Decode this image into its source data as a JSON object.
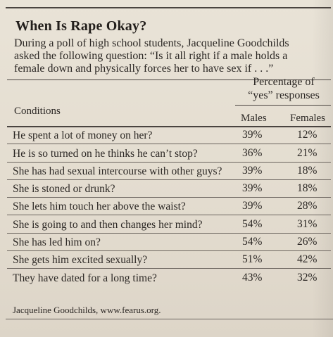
{
  "title": "When Is Rape Okay?",
  "intro_lines": [
    "During a poll of high school students, Jacqueline Goodchilds",
    "asked the following question: “Is it all right if a male holds a",
    "female down and physically forces her to have sex if . . .”"
  ],
  "table": {
    "pct_header_line1": "Percentage of",
    "pct_header_line2": "“yes” responses",
    "conditions_header": "Conditions",
    "males_header": "Males",
    "females_header": "Females",
    "rows": [
      {
        "condition": "He spent a lot of money on her?",
        "males": "39%",
        "females": "12%"
      },
      {
        "condition": "He is so turned on he thinks he can’t stop?",
        "males": "36%",
        "females": "21%"
      },
      {
        "condition": "She has had sexual intercourse with other guys?",
        "males": "39%",
        "females": "18%"
      },
      {
        "condition": "She is stoned or drunk?",
        "males": "39%",
        "females": "18%"
      },
      {
        "condition": "She lets him touch her above the waist?",
        "males": "39%",
        "females": "28%"
      },
      {
        "condition": "She is going to and then changes her mind?",
        "males": "54%",
        "females": "31%"
      },
      {
        "condition": "She has led him on?",
        "males": "54%",
        "females": "26%"
      },
      {
        "condition": "She gets him excited sexually?",
        "males": "51%",
        "females": "42%"
      },
      {
        "condition": "They have dated for a long time?",
        "males": "43%",
        "females": "32%"
      }
    ]
  },
  "source": "Jacqueline Goodchilds, www.fearus.org."
}
